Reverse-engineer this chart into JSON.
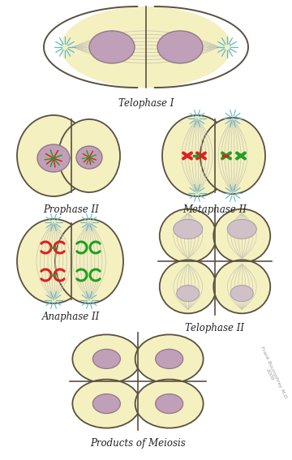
{
  "bg_color": "#ffffff",
  "cell_fill": "#f5f0c0",
  "cell_edge": "#5a5040",
  "nucleus_fill": "#c0a0b8",
  "nucleus_edge": "#907888",
  "spindle_color": "#c8c8b8",
  "aster_color": "#60b8cc",
  "chr_red": "#dd2020",
  "chr_green": "#20a020",
  "nuc_pale": "#d0c0c8",
  "labels": {
    "telophase1": "Telophase I",
    "prophase2": "Prophase II",
    "metaphase2": "Metaphase II",
    "anaphase2": "Anaphase II",
    "telophase2": "Telophase II",
    "products": "Products of Meiosis"
  },
  "watermark": "Frank Boumphrey M.D\n2009"
}
